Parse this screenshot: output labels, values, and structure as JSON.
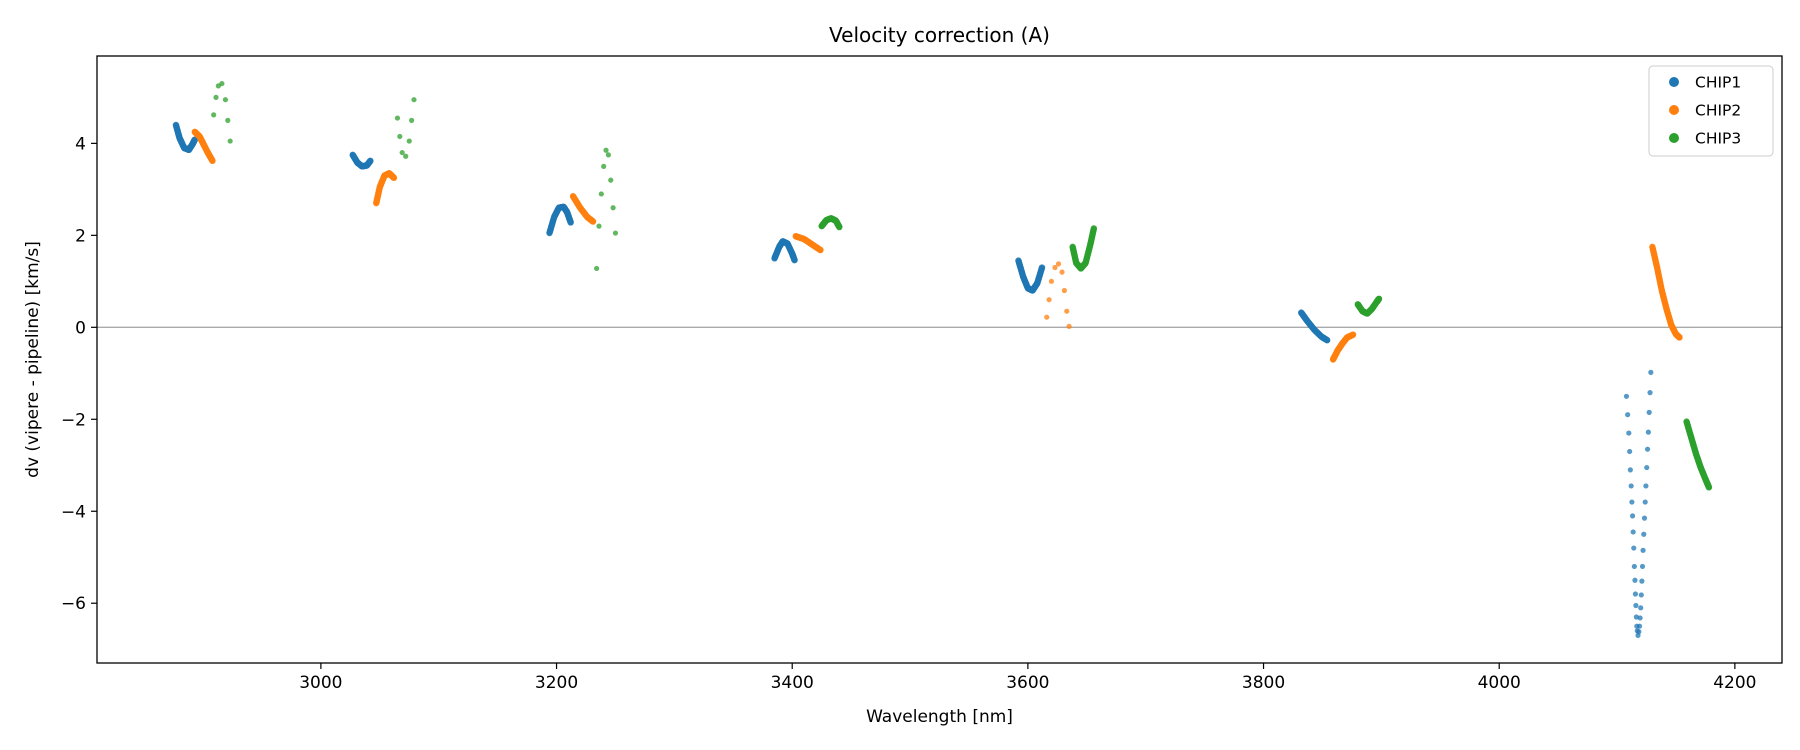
{
  "chart_data": {
    "type": "scatter",
    "title": "Velocity correction (A)",
    "xlabel": "Wavelength [nm]",
    "ylabel": "dv (vipere - pipeline) [km/s]",
    "xlim": [
      2810,
      4240
    ],
    "ylim": [
      -7.3,
      5.9
    ],
    "xticks": [
      3000,
      3200,
      3400,
      3600,
      3800,
      4000,
      4200
    ],
    "xtick_labels": [
      "3000",
      "3200",
      "3400",
      "3600",
      "3800",
      "4000",
      "4200"
    ],
    "yticks": [
      -6,
      -4,
      -2,
      0,
      2,
      4
    ],
    "ytick_labels": [
      "−6",
      "−4",
      "−2",
      "0",
      "2",
      "4"
    ],
    "reference_line": 0,
    "legend_position": "upper right",
    "series": [
      {
        "name": "CHIP1",
        "color": "#1f77b4",
        "segments": [
          {
            "xy": [
              [
                2877,
                4.4
              ],
              [
                2880,
                4.12
              ],
              [
                2884,
                3.9
              ],
              [
                2888,
                3.86
              ],
              [
                2891,
                3.98
              ],
              [
                2893,
                4.08
              ]
            ]
          },
          {
            "xy": [
              [
                3027,
                3.75
              ],
              [
                3031,
                3.58
              ],
              [
                3035,
                3.5
              ],
              [
                3039,
                3.52
              ],
              [
                3042,
                3.62
              ]
            ]
          },
          {
            "xy": [
              [
                3194,
                2.05
              ],
              [
                3198,
                2.4
              ],
              [
                3202,
                2.6
              ],
              [
                3206,
                2.62
              ],
              [
                3209,
                2.5
              ],
              [
                3212,
                2.28
              ]
            ]
          },
          {
            "xy": [
              [
                3385,
                1.5
              ],
              [
                3389,
                1.75
              ],
              [
                3392,
                1.87
              ],
              [
                3396,
                1.82
              ],
              [
                3400,
                1.6
              ],
              [
                3402,
                1.46
              ]
            ]
          },
          {
            "xy": [
              [
                3592,
                1.45
              ],
              [
                3596,
                1.1
              ],
              [
                3600,
                0.85
              ],
              [
                3604,
                0.8
              ],
              [
                3608,
                0.96
              ],
              [
                3612,
                1.3
              ]
            ]
          },
          {
            "xy": [
              [
                3832,
                0.32
              ],
              [
                3837,
                0.14
              ],
              [
                3843,
                -0.05
              ],
              [
                3849,
                -0.2
              ],
              [
                3854,
                -0.28
              ]
            ]
          },
          {
            "xy": [
              [
                4108,
                -1.5
              ],
              [
                4109,
                -1.9
              ],
              [
                4110,
                -2.3
              ],
              [
                4110.7,
                -2.7
              ],
              [
                4111.3,
                -3.1
              ],
              [
                4112,
                -3.45
              ],
              [
                4112.6,
                -3.8
              ],
              [
                4113.2,
                -4.1
              ],
              [
                4113.7,
                -4.45
              ],
              [
                4114.2,
                -4.8
              ],
              [
                4114.7,
                -5.2
              ],
              [
                4115.2,
                -5.5
              ],
              [
                4115.6,
                -5.8
              ],
              [
                4116,
                -6.05
              ],
              [
                4116.4,
                -6.3
              ],
              [
                4116.8,
                -6.5
              ],
              [
                4117.2,
                -6.6
              ],
              [
                4117.8,
                -6.7
              ],
              [
                4118.5,
                -6.62
              ],
              [
                4119.1,
                -6.5
              ],
              [
                4119.6,
                -6.32
              ],
              [
                4120.1,
                -6.1
              ],
              [
                4120.6,
                -5.82
              ],
              [
                4121.1,
                -5.52
              ],
              [
                4121.6,
                -5.2
              ],
              [
                4122.1,
                -4.85
              ],
              [
                4122.7,
                -4.5
              ],
              [
                4123.3,
                -4.15
              ],
              [
                4123.9,
                -3.8
              ],
              [
                4124.5,
                -3.45
              ],
              [
                4125.2,
                -3.05
              ],
              [
                4125.9,
                -2.65
              ],
              [
                4126.6,
                -2.28
              ],
              [
                4127.3,
                -1.85
              ],
              [
                4128,
                -1.42
              ],
              [
                4128.7,
                -0.98
              ]
            ],
            "sparse": true
          }
        ]
      },
      {
        "name": "CHIP2",
        "color": "#ff7f0e",
        "segments": [
          {
            "xy": [
              [
                2893,
                4.25
              ],
              [
                2897,
                4.15
              ],
              [
                2900,
                4.0
              ],
              [
                2904,
                3.8
              ],
              [
                2908,
                3.62
              ]
            ]
          },
          {
            "xy": [
              [
                3047,
                2.7
              ],
              [
                3050,
                3.05
              ],
              [
                3054,
                3.3
              ],
              [
                3058,
                3.35
              ],
              [
                3062,
                3.25
              ]
            ]
          },
          {
            "xy": [
              [
                3214,
                2.85
              ],
              [
                3220,
                2.6
              ],
              [
                3226,
                2.4
              ],
              [
                3231,
                2.3
              ]
            ]
          },
          {
            "xy": [
              [
                3403,
                1.98
              ],
              [
                3410,
                1.92
              ],
              [
                3417,
                1.8
              ],
              [
                3424,
                1.68
              ]
            ]
          },
          {
            "xy": [
              [
                3616,
                0.22
              ],
              [
                3618,
                0.6
              ],
              [
                3620,
                1.0
              ],
              [
                3623,
                1.3
              ],
              [
                3626,
                1.38
              ],
              [
                3629,
                1.2
              ],
              [
                3631,
                0.8
              ],
              [
                3633,
                0.35
              ],
              [
                3635,
                0.02
              ]
            ],
            "sparse": true
          },
          {
            "xy": [
              [
                3859,
                -0.7
              ],
              [
                3863,
                -0.5
              ],
              [
                3867,
                -0.35
              ],
              [
                3871,
                -0.22
              ],
              [
                3876,
                -0.16
              ]
            ]
          },
          {
            "xy": [
              [
                4130,
                1.75
              ],
              [
                4134,
                1.3
              ],
              [
                4138,
                0.8
              ],
              [
                4142,
                0.4
              ],
              [
                4146,
                0.05
              ],
              [
                4150,
                -0.15
              ],
              [
                4153,
                -0.22
              ]
            ]
          }
        ]
      },
      {
        "name": "CHIP3",
        "color": "#2ca02c",
        "segments": [
          {
            "xy": [
              [
                2909,
                4.62
              ],
              [
                2911,
                5.0
              ],
              [
                2913,
                5.25
              ],
              [
                2916,
                5.3
              ],
              [
                2919,
                4.95
              ],
              [
                2921,
                4.5
              ],
              [
                2923,
                4.05
              ]
            ],
            "sparse": true
          },
          {
            "xy": [
              [
                3065,
                4.55
              ],
              [
                3067,
                4.15
              ],
              [
                3069,
                3.8
              ],
              [
                3072,
                3.72
              ],
              [
                3075,
                4.05
              ],
              [
                3077,
                4.5
              ],
              [
                3079,
                4.95
              ]
            ],
            "sparse": true
          },
          {
            "xy": [
              [
                3234,
                1.28
              ],
              [
                3236,
                2.2
              ],
              [
                3238,
                2.9
              ],
              [
                3240,
                3.5
              ],
              [
                3242,
                3.85
              ],
              [
                3244,
                3.75
              ],
              [
                3246,
                3.2
              ],
              [
                3248,
                2.6
              ],
              [
                3250,
                2.05
              ]
            ],
            "sparse": true
          },
          {
            "xy": [
              [
                3425,
                2.2
              ],
              [
                3429,
                2.33
              ],
              [
                3433,
                2.37
              ],
              [
                3437,
                2.32
              ],
              [
                3440,
                2.18
              ]
            ]
          },
          {
            "xy": [
              [
                3638,
                1.75
              ],
              [
                3641,
                1.4
              ],
              [
                3645,
                1.28
              ],
              [
                3649,
                1.4
              ],
              [
                3653,
                1.8
              ],
              [
                3656,
                2.15
              ]
            ]
          },
          {
            "xy": [
              [
                3880,
                0.5
              ],
              [
                3884,
                0.35
              ],
              [
                3888,
                0.3
              ],
              [
                3892,
                0.4
              ],
              [
                3896,
                0.55
              ],
              [
                3898,
                0.62
              ]
            ]
          },
          {
            "xy": [
              [
                4159,
                -2.05
              ],
              [
                4163,
                -2.4
              ],
              [
                4167,
                -2.75
              ],
              [
                4171,
                -3.05
              ],
              [
                4175,
                -3.3
              ],
              [
                4178,
                -3.48
              ]
            ]
          }
        ]
      }
    ]
  }
}
